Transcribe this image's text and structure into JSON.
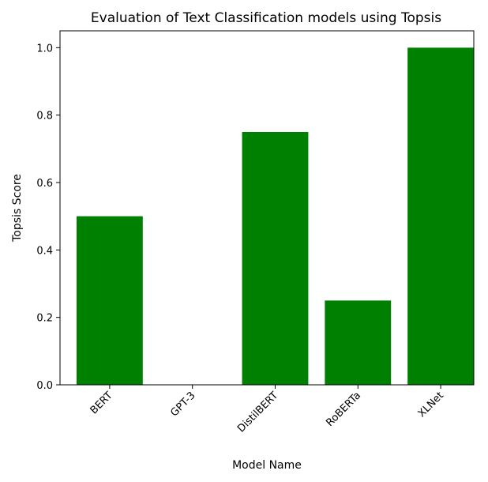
{
  "chart_data": {
    "type": "bar",
    "title": "Evaluation of Text Classification models using Topsis",
    "xlabel": "Model Name",
    "ylabel": "Topsis Score",
    "categories": [
      "BERT",
      "GPT-3",
      "DistilBERT",
      "RoBERTa",
      "XLNet"
    ],
    "values": [
      0.5,
      0.0,
      0.75,
      0.25,
      1.0
    ],
    "ylim": [
      0,
      1.05
    ],
    "yticks": [
      0.0,
      0.2,
      0.4,
      0.6,
      0.8,
      1.0
    ],
    "ytick_labels": [
      "0.0",
      "0.2",
      "0.4",
      "0.6",
      "0.8",
      "1.0"
    ],
    "bar_color": "#008000",
    "grid": false,
    "xtick_rotation_degrees": 45
  }
}
